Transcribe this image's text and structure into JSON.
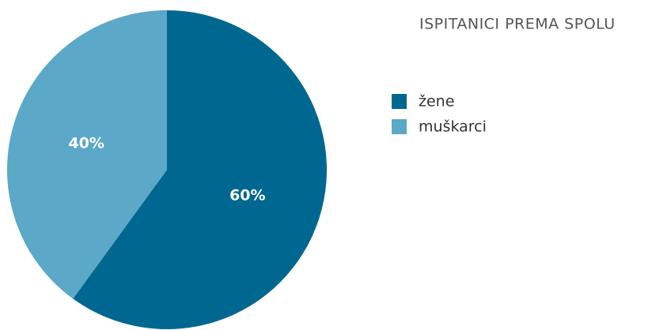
{
  "chart_data": {
    "type": "pie",
    "title": "ISPITANICI PREMA SPOLU",
    "categories": [
      "žene",
      "muškarci"
    ],
    "values": [
      60,
      40
    ],
    "value_labels": [
      "60%",
      "40%"
    ],
    "colors": [
      "#006890",
      "#5ba8c8"
    ],
    "legend": "right"
  }
}
